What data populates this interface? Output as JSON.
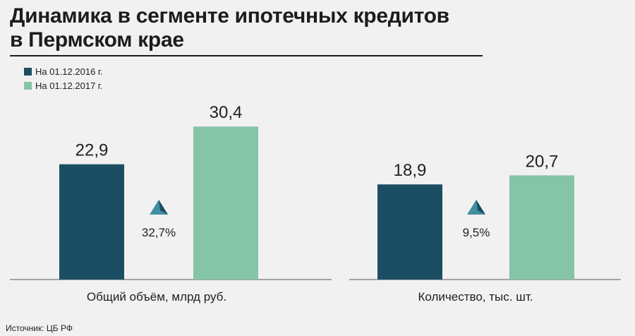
{
  "chart_data": {
    "type": "bar",
    "title": "Динамика в сегменте ипотечных кредитов\nв Пермском крае",
    "title_lines": [
      "Динамика в сегменте ипотечных кредитов",
      "в Пермском крае"
    ],
    "legend_placement": "top-left",
    "grid": false,
    "series": [
      {
        "name": "На 01.12.2016 г.",
        "color": "#1b4e63"
      },
      {
        "name": "На 01.12.2017 г.",
        "color": "#86c4a7"
      }
    ],
    "groups": [
      {
        "category": "Общий объём, млрд руб.",
        "values": [
          22.9,
          30.4
        ],
        "value_labels": [
          "22,9",
          "30,4"
        ],
        "growth": "32,7%"
      },
      {
        "category": "Количество, тыс. шт.",
        "values": [
          18.9,
          20.7
        ],
        "value_labels": [
          "18,9",
          "20,7"
        ],
        "growth": "9,5%"
      }
    ]
  },
  "source": "Источник: ЦБ РФ",
  "colors": {
    "background": "#f1f1f1",
    "baseline": "#8a8a8a",
    "growth_icon": "#3f8fa0"
  }
}
